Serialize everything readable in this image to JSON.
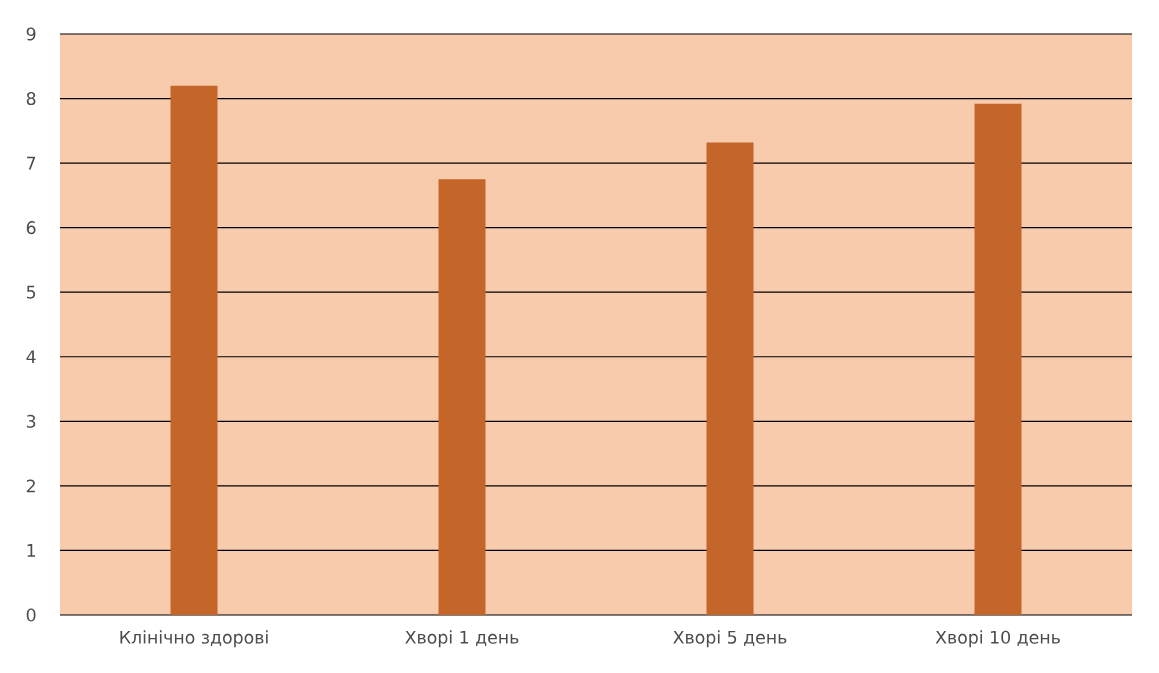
{
  "chart_data": {
    "type": "bar",
    "categories": [
      "Клінічно здорові",
      "Хворі 1 день",
      "Хворі 5 день",
      "Хворі 10 день"
    ],
    "values": [
      8.2,
      6.75,
      7.32,
      7.92
    ],
    "color": "#c4652a",
    "ylim": [
      0,
      9
    ],
    "yticks": [
      0,
      1,
      2,
      3,
      4,
      5,
      6,
      7,
      8,
      9
    ],
    "grid": "y"
  }
}
